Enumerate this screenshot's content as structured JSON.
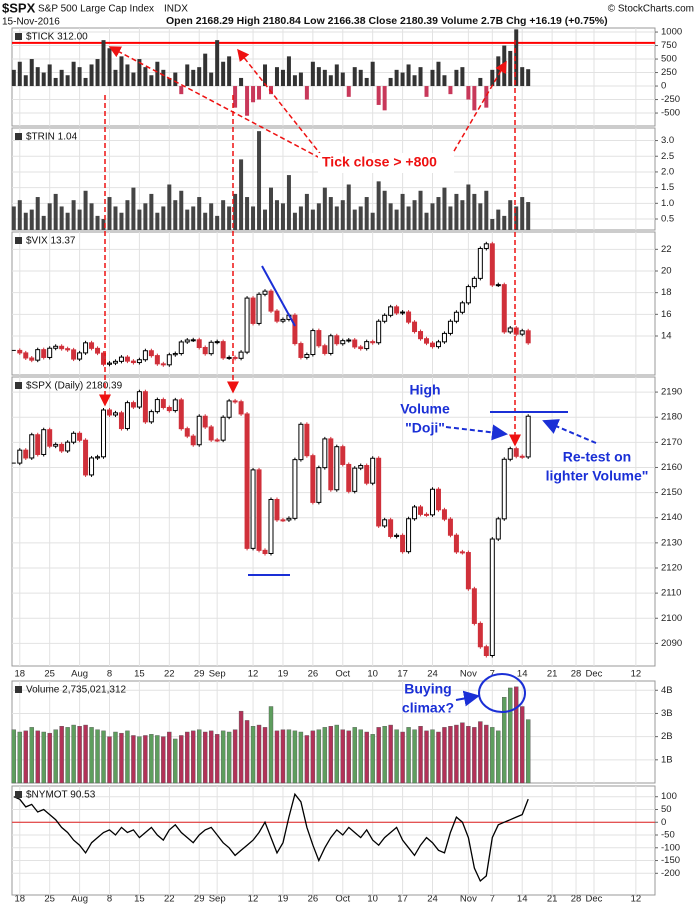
{
  "header": {
    "symbol": "$SPX",
    "name": "S&P 500 Large Cap Index",
    "exchange": "INDX",
    "date": "15-Nov-2016",
    "quote": "Open 2168.29 High 2180.84 Low 2166.38 Close 2180.39 Volume 2.7B Chg +16.19 (+0.75%)",
    "credit": "© StockCharts.com"
  },
  "annotations": {
    "tick_note": "Tick close > +800",
    "doji": [
      "High",
      "Volume",
      "\"Doji\""
    ],
    "retest": [
      "Re-test on",
      "lighter Volume\""
    ],
    "climax": [
      "Buying",
      "climax?"
    ]
  },
  "chart_data": [
    {
      "type": "bar",
      "title": "$TICK 312.00",
      "up_color": "#333333",
      "down_color": "#c8385a",
      "ylim": [
        -740,
        1075
      ],
      "yticks": [
        -500,
        -250,
        0,
        250,
        500,
        750,
        1000
      ],
      "grid": true,
      "reference_line": 800,
      "reference_color": "#ff0000",
      "values": [
        300,
        450,
        200,
        500,
        350,
        250,
        400,
        150,
        300,
        200,
        450,
        350,
        150,
        400,
        500,
        850,
        700,
        300,
        550,
        400,
        250,
        500,
        350,
        200,
        450,
        300,
        150,
        250,
        -150,
        400,
        300,
        350,
        600,
        250,
        850,
        450,
        550,
        -400,
        150,
        -550,
        -300,
        -250,
        400,
        -150,
        350,
        300,
        550,
        200,
        250,
        -250,
        450,
        350,
        300,
        200,
        400,
        250,
        -200,
        350,
        300,
        150,
        450,
        -350,
        -450,
        150,
        300,
        250,
        400,
        200,
        350,
        -200,
        300,
        450,
        200,
        -150,
        300,
        350,
        -250,
        -450,
        150,
        -400,
        300,
        550,
        750,
        650,
        1050,
        350,
        312
      ]
    },
    {
      "type": "bar",
      "title": "$TRIN 1.04",
      "color": "#444444",
      "ylim": [
        0.15,
        3.4
      ],
      "yticks": [
        0.5,
        {
          "value": 1,
          "label": "1.0"
        },
        1.5,
        {
          "value": 2,
          "label": "2.0"
        },
        2.5,
        {
          "value": 3,
          "label": "3.0"
        }
      ],
      "grid": true,
      "values": [
        0.9,
        1.1,
        0.7,
        0.8,
        1.2,
        0.6,
        1.0,
        1.3,
        0.9,
        0.7,
        1.1,
        0.8,
        1.4,
        1.0,
        0.6,
        0.5,
        1.2,
        0.9,
        0.7,
        1.1,
        1.5,
        0.8,
        1.0,
        1.3,
        0.7,
        0.9,
        1.6,
        1.1,
        1.4,
        0.8,
        0.9,
        1.2,
        0.7,
        1.0,
        0.6,
        1.1,
        0.9,
        1.3,
        2.4,
        1.2,
        0.9,
        3.3,
        0.8,
        1.5,
        1.1,
        1.0,
        1.9,
        0.7,
        0.9,
        1.3,
        0.8,
        1.0,
        1.5,
        1.2,
        0.9,
        1.1,
        1.6,
        0.8,
        0.9,
        1.2,
        0.7,
        1.7,
        1.4,
        1.0,
        0.8,
        1.3,
        0.9,
        1.1,
        1.4,
        0.7,
        1.0,
        1.2,
        1.5,
        0.9,
        1.3,
        1.1,
        1.6,
        1.3,
        1.0,
        1.4,
        0.5,
        0.8,
        0.6,
        1.1,
        0.9,
        1.2,
        1.04
      ]
    },
    {
      "type": "candlestick",
      "title": "$VIX 13.37",
      "up_color": "#000000",
      "down_color": "#d0303a",
      "ylim": [
        10.4,
        23.6
      ],
      "yticks": [
        14,
        16,
        18,
        20,
        22
      ],
      "grid": true,
      "values": [
        12.67,
        12.44,
        11.97,
        11.77,
        12.74,
        12.02,
        12.87,
        13.05,
        12.83,
        12.72,
        11.87,
        12.44,
        13.37,
        12.86,
        12.42,
        11.39,
        11.5,
        11.66,
        12.05,
        11.68,
        11.55,
        11.81,
        12.64,
        12.19,
        11.43,
        11.34,
        12.27,
        12.38,
        13.45,
        13.63,
        13.65,
        12.94,
        12.37,
        13.42,
        13.48,
        11.98,
        12.02,
        11.94,
        12.51,
        17.5,
        15.16,
        17.85,
        18.14,
        16.3,
        15.37,
        15.53,
        15.92,
        13.3,
        12.02,
        12.29,
        14.5,
        13.1,
        12.39,
        14.02,
        13.29,
        13.57,
        13.63,
        12.99,
        12.84,
        13.48,
        13.38,
        15.36,
        15.91,
        16.69,
        16.12,
        16.21,
        15.28,
        14.41,
        13.75,
        13.34,
        13.02,
        13.46,
        14.24,
        15.36,
        16.19,
        17.06,
        18.56,
        19.32,
        22.08,
        22.51,
        18.71,
        18.74,
        14.38,
        14.74,
        14.17,
        14.48,
        13.37
      ]
    },
    {
      "type": "candlestick",
      "title": "$SPX (Daily) 2180.39",
      "up_color": "#000000",
      "down_color": "#d0303a",
      "ylim": [
        2081,
        2196
      ],
      "yticks": [
        2090,
        2100,
        2110,
        2120,
        2130,
        2140,
        2150,
        2160,
        2170,
        2180,
        2190
      ],
      "grid": true,
      "xlim": [
        -0.3,
        107.2
      ],
      "xticks": [
        {
          "value": 1,
          "label": "18"
        },
        {
          "value": 6,
          "label": "25"
        },
        {
          "value": 11,
          "label": "Aug"
        },
        {
          "value": 16,
          "label": "8"
        },
        {
          "value": 21,
          "label": "15"
        },
        {
          "value": 26,
          "label": "22"
        },
        {
          "value": 31,
          "label": "29"
        },
        {
          "value": 34,
          "label": "Sep"
        },
        {
          "value": 40,
          "label": "12"
        },
        {
          "value": 45,
          "label": "19"
        },
        {
          "value": 50,
          "label": "26"
        },
        {
          "value": 55,
          "label": "Oct"
        },
        {
          "value": 60,
          "label": "10"
        },
        {
          "value": 65,
          "label": "17"
        },
        {
          "value": 70,
          "label": "24"
        },
        {
          "value": 76,
          "label": "Nov"
        },
        {
          "value": 80,
          "label": "7"
        },
        {
          "value": 85,
          "label": "14"
        },
        {
          "value": 90,
          "label": "21"
        },
        {
          "value": 94,
          "label": "28"
        },
        {
          "value": 97,
          "label": "Dec"
        },
        {
          "value": 104,
          "label": "12"
        }
      ],
      "values": [
        2161.74,
        2166.89,
        2163.78,
        2173.02,
        2165.17,
        2175.03,
        2168.48,
        2169.18,
        2166.58,
        2170.06,
        2173.6,
        2170.84,
        2157.03,
        2163.79,
        2164.25,
        2182.87,
        2180.89,
        2181.74,
        2175.49,
        2185.79,
        2184.05,
        2190.15,
        2178.15,
        2182.22,
        2187.02,
        2183.87,
        2182.64,
        2186.9,
        2175.44,
        2172.47,
        2169.04,
        2180.38,
        2176.12,
        2170.95,
        2170.86,
        2179.98,
        2186.48,
        2186.16,
        2181.3,
        2127.81,
        2159.04,
        2127.02,
        2125.77,
        2147.26,
        2139.16,
        2139.12,
        2139.76,
        2163.12,
        2177.18,
        2164.69,
        2146.1,
        2159.93,
        2171.37,
        2151.13,
        2168.27,
        2161.2,
        2150.49,
        2159.73,
        2160.77,
        2153.74,
        2163.66,
        2136.73,
        2139.18,
        2132.55,
        2132.98,
        2126.5,
        2139.6,
        2144.29,
        2141.34,
        2141.16,
        2151.33,
        2143.16,
        2139.43,
        2133.04,
        2126.41,
        2126.15,
        2111.72,
        2097.94,
        2088.66,
        2085.18,
        2131.52,
        2139.56,
        2163.26,
        2167.48,
        2164.45,
        2164.2,
        2180.39
      ]
    },
    {
      "type": "bar",
      "title": "Volume 2,735,021,312",
      "up_color": "#5e9e5e",
      "down_color": "#b23258",
      "ylim": [
        0,
        4400000000
      ],
      "yticks": [
        {
          "value": 1000000000,
          "label": "1B"
        },
        {
          "value": 2000000000,
          "label": "2B"
        },
        {
          "value": 3000000000,
          "label": "3B"
        },
        {
          "value": 4000000000,
          "label": "4B"
        }
      ],
      "grid": true,
      "values": [
        2300000000,
        2200000000,
        2250000000,
        2400000000,
        2250000000,
        2200000000,
        2150000000,
        2300000000,
        2450000000,
        2400000000,
        2500000000,
        2450000000,
        2500000000,
        2400000000,
        2300000000,
        2250000000,
        2000000000,
        2200000000,
        2150000000,
        2250000000,
        2050000000,
        2000000000,
        2050000000,
        2100000000,
        2050000000,
        2000000000,
        2200000000,
        1900000000,
        2050000000,
        2200000000,
        2250000000,
        2300000000,
        2200000000,
        2250000000,
        2100000000,
        2250000000,
        2200000000,
        2300000000,
        3100000000,
        2700000000,
        2450000000,
        2500000000,
        2400000000,
        3300000000,
        2250000000,
        2300000000,
        2300000000,
        2250000000,
        2200000000,
        2050000000,
        2250000000,
        2300000000,
        2400000000,
        2450000000,
        2500000000,
        2300000000,
        2250000000,
        2400000000,
        2300000000,
        2200000000,
        2100000000,
        2400000000,
        2450000000,
        2500000000,
        2300000000,
        2200000000,
        2400000000,
        2300000000,
        2450000000,
        2250000000,
        2300000000,
        2200000000,
        2400000000,
        2450000000,
        2500000000,
        2600000000,
        2450000000,
        2400000000,
        2650000000,
        2500000000,
        2400000000,
        2250000000,
        3700000000,
        4100000000,
        4150000000,
        3300000000,
        2735021312
      ]
    },
    {
      "type": "line",
      "title": "$NYMOT 90.53",
      "color": "#000000",
      "ylim": [
        -285,
        142
      ],
      "yticks": [
        -200,
        -150,
        -100,
        -50,
        0,
        50,
        100
      ],
      "grid": true,
      "reference_line": 0,
      "reference_color": "#e02020",
      "values": [
        100,
        90,
        60,
        70,
        40,
        50,
        30,
        10,
        -20,
        -40,
        -70,
        -90,
        -120,
        -80,
        -60,
        -40,
        -30,
        -50,
        -20,
        -40,
        -30,
        -60,
        -40,
        -20,
        -50,
        -70,
        -30,
        -10,
        -40,
        -60,
        -80,
        -50,
        -30,
        -20,
        -50,
        -80,
        -100,
        -130,
        -110,
        -90,
        -70,
        -40,
        0,
        -60,
        -120,
        -80,
        20,
        110,
        80,
        -20,
        -90,
        -150,
        -100,
        -60,
        -30,
        -50,
        -20,
        -40,
        -60,
        -30,
        -70,
        -90,
        -60,
        -40,
        -20,
        -70,
        -100,
        -130,
        -90,
        -60,
        -80,
        -110,
        -120,
        -40,
        20,
        0,
        -60,
        -180,
        -230,
        -210,
        -60,
        -10,
        0,
        10,
        20,
        30,
        90.53
      ]
    }
  ]
}
